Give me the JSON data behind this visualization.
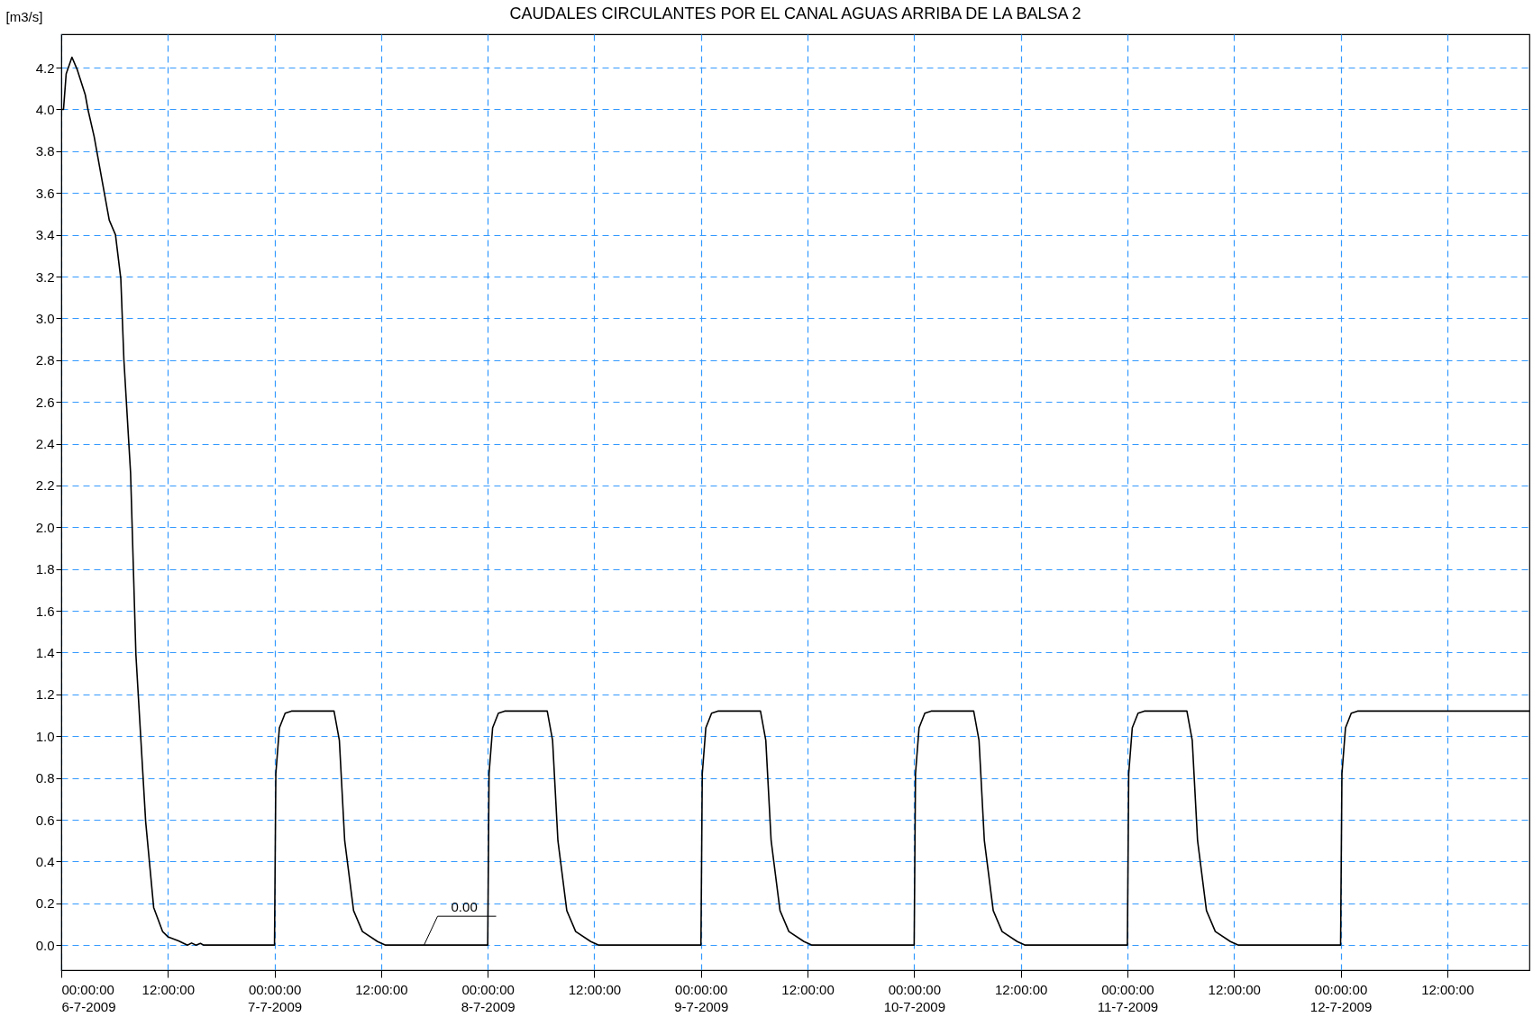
{
  "chart_data": {
    "type": "line",
    "title": "CAUDALES CIRCULANTES POR EL CANAL AGUAS ARRIBA DE LA BALSA 2",
    "ylabel": "[m3/s]",
    "x": [
      "2009-07-06T00:00",
      "2009-07-06T00:15",
      "2009-07-06T00:33",
      "2009-07-06T01:12",
      "2009-07-06T01:48",
      "2009-07-06T02:42",
      "2009-07-06T03:00",
      "2009-07-06T03:42",
      "2009-07-06T04:33",
      "2009-07-06T05:24",
      "2009-07-06T06:06",
      "2009-07-06T06:42",
      "2009-07-06T07:03",
      "2009-07-06T07:48",
      "2009-07-06T08:24",
      "2009-07-06T09:30",
      "2009-07-06T10:24",
      "2009-07-06T11:24",
      "2009-07-06T12:00",
      "2009-07-06T13:12",
      "2009-07-06T14:12",
      "2009-07-06T14:40",
      "2009-07-06T15:10",
      "2009-07-06T15:40",
      "2009-07-06T16:00",
      "2009-07-07T00:00",
      "2009-07-07T00:09",
      "2009-07-07T00:33",
      "2009-07-07T01:12",
      "2009-07-07T01:54",
      "2009-07-07T06:42",
      "2009-07-07T07:18",
      "2009-07-07T07:54",
      "2009-07-07T08:54",
      "2009-07-07T09:54",
      "2009-07-07T11:36",
      "2009-07-07T12:30",
      "2009-07-08T00:00",
      "2009-07-08T00:09",
      "2009-07-08T00:33",
      "2009-07-08T01:12",
      "2009-07-08T01:54",
      "2009-07-08T06:42",
      "2009-07-08T07:18",
      "2009-07-08T07:54",
      "2009-07-08T08:54",
      "2009-07-08T09:54",
      "2009-07-08T11:36",
      "2009-07-08T12:30",
      "2009-07-09T00:00",
      "2009-07-09T00:09",
      "2009-07-09T00:33",
      "2009-07-09T01:12",
      "2009-07-09T01:54",
      "2009-07-09T06:42",
      "2009-07-09T07:18",
      "2009-07-09T07:54",
      "2009-07-09T08:54",
      "2009-07-09T09:54",
      "2009-07-09T11:36",
      "2009-07-09T12:30",
      "2009-07-10T00:00",
      "2009-07-10T00:09",
      "2009-07-10T00:33",
      "2009-07-10T01:12",
      "2009-07-10T01:54",
      "2009-07-10T06:42",
      "2009-07-10T07:18",
      "2009-07-10T07:54",
      "2009-07-10T08:54",
      "2009-07-10T09:54",
      "2009-07-10T11:36",
      "2009-07-10T12:30",
      "2009-07-11T00:00",
      "2009-07-11T00:09",
      "2009-07-11T00:33",
      "2009-07-11T01:12",
      "2009-07-11T01:54",
      "2009-07-11T06:42",
      "2009-07-11T07:18",
      "2009-07-11T07:54",
      "2009-07-11T08:54",
      "2009-07-11T09:54",
      "2009-07-11T11:36",
      "2009-07-11T12:30",
      "2009-07-12T00:00",
      "2009-07-12T00:09",
      "2009-07-12T00:33",
      "2009-07-12T01:12",
      "2009-07-12T01:54",
      "2009-07-12T21:15"
    ],
    "series": [
      {
        "color": "#000000",
        "values": [
          4.0,
          4.0,
          4.17,
          4.25,
          4.19,
          4.07,
          4.0,
          3.87,
          3.67,
          3.47,
          3.4,
          3.19,
          2.8,
          2.26,
          1.39,
          0.59,
          0.18,
          0.065,
          0.04,
          0.02,
          0,
          0.01,
          0,
          0.008,
          0,
          0,
          0.82,
          1.04,
          1.11,
          1.12,
          1.12,
          0.98,
          0.5,
          0.165,
          0.065,
          0.017,
          0,
          0,
          0.82,
          1.04,
          1.11,
          1.12,
          1.12,
          0.98,
          0.5,
          0.165,
          0.065,
          0.017,
          0,
          0,
          0.82,
          1.04,
          1.11,
          1.12,
          1.12,
          0.98,
          0.5,
          0.165,
          0.065,
          0.017,
          0,
          0,
          0.82,
          1.04,
          1.11,
          1.12,
          1.12,
          0.98,
          0.5,
          0.165,
          0.065,
          0.017,
          0,
          0,
          0.82,
          1.04,
          1.11,
          1.12,
          1.12,
          0.98,
          0.5,
          0.165,
          0.065,
          0.017,
          0,
          0,
          0.82,
          1.04,
          1.11,
          1.12,
          1.12
        ]
      }
    ],
    "annotations": [
      {
        "text": "0.00",
        "x": "2009-07-07T16:50",
        "y": 0
      }
    ],
    "xlim": [
      "2009-07-06T00:00",
      "2009-07-12T21:15"
    ],
    "xticks": [
      {
        "value": "2009-07-06T00:00",
        "label": "00:00:00\n6-7-2009"
      },
      {
        "value": "2009-07-06T12:00",
        "label": "12:00:00"
      },
      {
        "value": "2009-07-07T00:00",
        "label": "00:00:00\n7-7-2009"
      },
      {
        "value": "2009-07-07T12:00",
        "label": "12:00:00"
      },
      {
        "value": "2009-07-08T00:00",
        "label": "00:00:00\n8-7-2009"
      },
      {
        "value": "2009-07-08T12:00",
        "label": "12:00:00"
      },
      {
        "value": "2009-07-09T00:00",
        "label": "00:00:00\n9-7-2009"
      },
      {
        "value": "2009-07-09T12:00",
        "label": "12:00:00"
      },
      {
        "value": "2009-07-10T00:00",
        "label": "00:00:00\n10-7-2009"
      },
      {
        "value": "2009-07-10T12:00",
        "label": "12:00:00"
      },
      {
        "value": "2009-07-11T00:00",
        "label": "00:00:00\n11-7-2009"
      },
      {
        "value": "2009-07-11T12:00",
        "label": "12:00:00"
      },
      {
        "value": "2009-07-12T00:00",
        "label": "00:00:00\n12-7-2009"
      },
      {
        "value": "2009-07-12T12:00",
        "label": "12:00:00"
      }
    ],
    "ylim": [
      -0.12,
      4.36
    ],
    "yticks": [
      {
        "value": 0,
        "label": "0.0"
      },
      0.2,
      0.4,
      0.6,
      0.8,
      {
        "value": 1,
        "label": "1.0"
      },
      1.2,
      1.4,
      1.6,
      1.8,
      {
        "value": 2,
        "label": "2.0"
      },
      2.2,
      2.4,
      2.6,
      2.8,
      {
        "value": 3,
        "label": "3.0"
      },
      3.2,
      3.4,
      3.6,
      3.8,
      {
        "value": 4,
        "label": "4.0"
      },
      4.2
    ],
    "grid": true
  }
}
